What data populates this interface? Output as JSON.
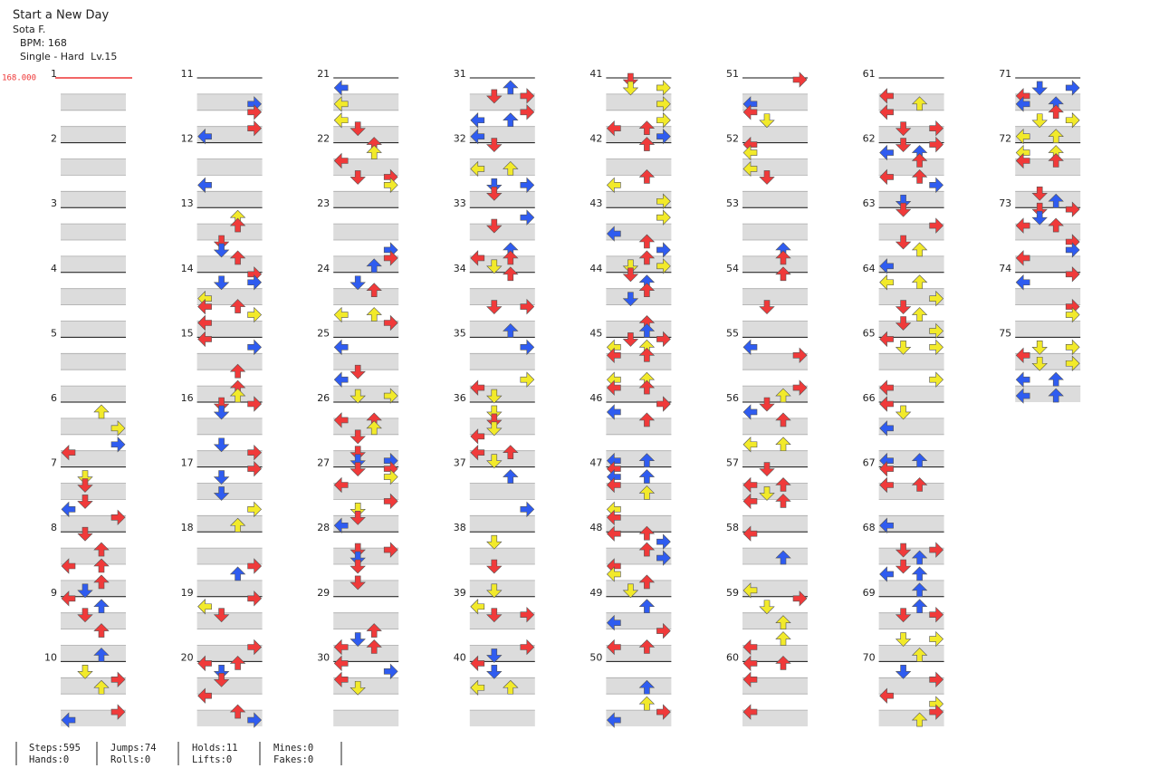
{
  "header": {
    "title": "Start a New Day",
    "artist": "Sota F.",
    "bpm": "BPM: 168",
    "difficulty": "Single - Hard  Lv.15",
    "bpm_marker": "168.000"
  },
  "measures": [
    1,
    2,
    3,
    4,
    5,
    6,
    7,
    8,
    9,
    10,
    11,
    12,
    13,
    14,
    15,
    16,
    17,
    18,
    19,
    20,
    21,
    22,
    23,
    24,
    25,
    26,
    27,
    28,
    29,
    30,
    31,
    32,
    33,
    34,
    35,
    36,
    37,
    38,
    39,
    40,
    41,
    42,
    43,
    44,
    45,
    46,
    47,
    48,
    49,
    50,
    51,
    52,
    53,
    54,
    55,
    56,
    57,
    58,
    59,
    60,
    61,
    62,
    63,
    64,
    65,
    66,
    67,
    68,
    69,
    70,
    71,
    72,
    73,
    74,
    75
  ],
  "stats": [
    [
      "Steps:595",
      "Hands:0"
    ],
    [
      "Jumps:74",
      "Rolls:0"
    ],
    [
      "Holds:11",
      "Lifts:0"
    ],
    [
      "Mines:0",
      "Fakes:0"
    ]
  ]
}
